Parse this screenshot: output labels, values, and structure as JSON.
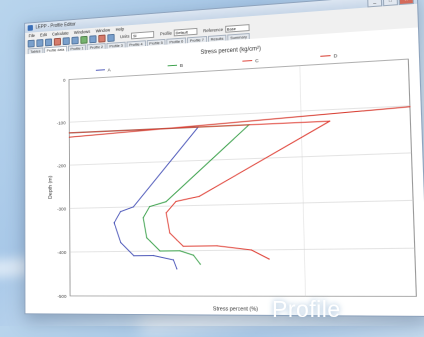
{
  "window": {
    "title": "LEPP - Profile Editor",
    "min_label": "_",
    "max_label": "□",
    "close_label": "x"
  },
  "menu": [
    "File",
    "Edit",
    "Calculate",
    "Windows",
    "Window",
    "Help"
  ],
  "toolbar": {
    "units_label": "Units",
    "units_value": "SI",
    "profile_label": "Profile",
    "profile_value": "Default",
    "reference_label": "Reference",
    "reference_value": "Base"
  },
  "tabs": [
    "Tables",
    "Profile data",
    "Profile 1",
    "Profile 2",
    "Profile 3",
    "Profile 4",
    "Profile 5",
    "Profile 6",
    "Profile 7",
    "Results",
    "Summary"
  ],
  "caption": "Profile",
  "chart_data": {
    "type": "line",
    "title": "Stress percent (kg/cm²)",
    "xlabel": "Stress percent (%)",
    "ylabel": "Depth (m)",
    "xlim": [
      0,
      100
    ],
    "ylim": [
      -500,
      0
    ],
    "yticks": [
      0,
      -100,
      -200,
      -300,
      -400,
      -500
    ],
    "grid": true,
    "legend": "top",
    "colors": {
      "blue": "#4a55b8",
      "green": "#3aa04a",
      "red": "#e0453b",
      "reference": "#d73b2f"
    },
    "series": [
      {
        "name": "A",
        "color": "#4a55b8",
        "x": [
          0,
          40,
          20,
          16,
          14,
          16,
          20,
          26,
          32,
          33
        ],
        "y": [
          -125,
          -125,
          -300,
          -310,
          -335,
          -380,
          -410,
          -410,
          -420,
          -440
        ]
      },
      {
        "name": "B",
        "color": "#3aa04a",
        "x": [
          0,
          55,
          30,
          25,
          23,
          24,
          28,
          34,
          38,
          40
        ],
        "y": [
          -125,
          -125,
          -290,
          -300,
          -325,
          -370,
          -400,
          -400,
          -410,
          -430
        ]
      },
      {
        "name": "C",
        "color": "#e0453b",
        "x": [
          0,
          78,
          40,
          33,
          30,
          31,
          35,
          45,
          55,
          60
        ],
        "y": [
          -125,
          -125,
          -280,
          -290,
          -315,
          -360,
          -390,
          -390,
          -400,
          -420
        ]
      },
      {
        "name": "D",
        "color": "#d73b2f",
        "x": [
          0,
          100
        ],
        "y": [
          -135,
          -102
        ]
      }
    ]
  }
}
